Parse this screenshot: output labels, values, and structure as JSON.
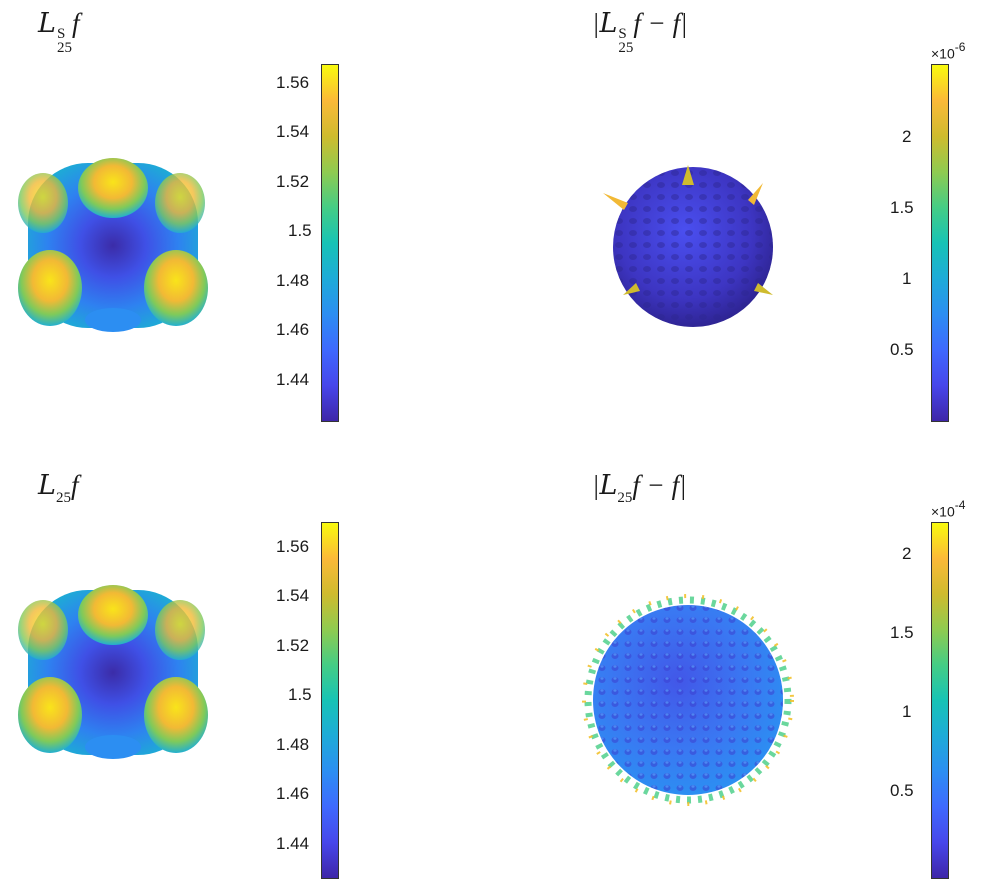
{
  "colormap": [
    "#3e26a8",
    "#4746eb",
    "#3f69fe",
    "#2c8ef2",
    "#1eabd8",
    "#17c3b5",
    "#45cd85",
    "#8fcb50",
    "#cfbb2e",
    "#fbb938",
    "#f3dd27",
    "#f9fb0e"
  ],
  "panels": [
    {
      "id": "p1",
      "title_main": "L",
      "title_sup": "S",
      "title_sub": "25",
      "title_tail": "f",
      "colorbar": {
        "ticks": [
          "1.56",
          "1.54",
          "1.52",
          "1.5",
          "1.48",
          "1.46",
          "1.44"
        ],
        "exponent": ""
      }
    },
    {
      "id": "p2",
      "title_pre": "|",
      "title_main": "L",
      "title_sup": "S",
      "title_sub": "25",
      "title_tail": "f − f|",
      "colorbar": {
        "ticks": [
          "2",
          "1.5",
          "1",
          "0.5"
        ],
        "exponent_base": "×10",
        "exponent_power": "-6"
      }
    },
    {
      "id": "p3",
      "title_main": "L",
      "title_sub": "25",
      "title_tail": "f",
      "colorbar": {
        "ticks": [
          "1.56",
          "1.54",
          "1.52",
          "1.5",
          "1.48",
          "1.46",
          "1.44"
        ],
        "exponent": ""
      }
    },
    {
      "id": "p4",
      "title_pre": "|",
      "title_main": "L",
      "title_sub": "25",
      "title_tail": "f − f|",
      "colorbar": {
        "ticks": [
          "2",
          "1.5",
          "1",
          "0.5"
        ],
        "exponent_base": "×10",
        "exponent_power": "-4"
      }
    }
  ]
}
